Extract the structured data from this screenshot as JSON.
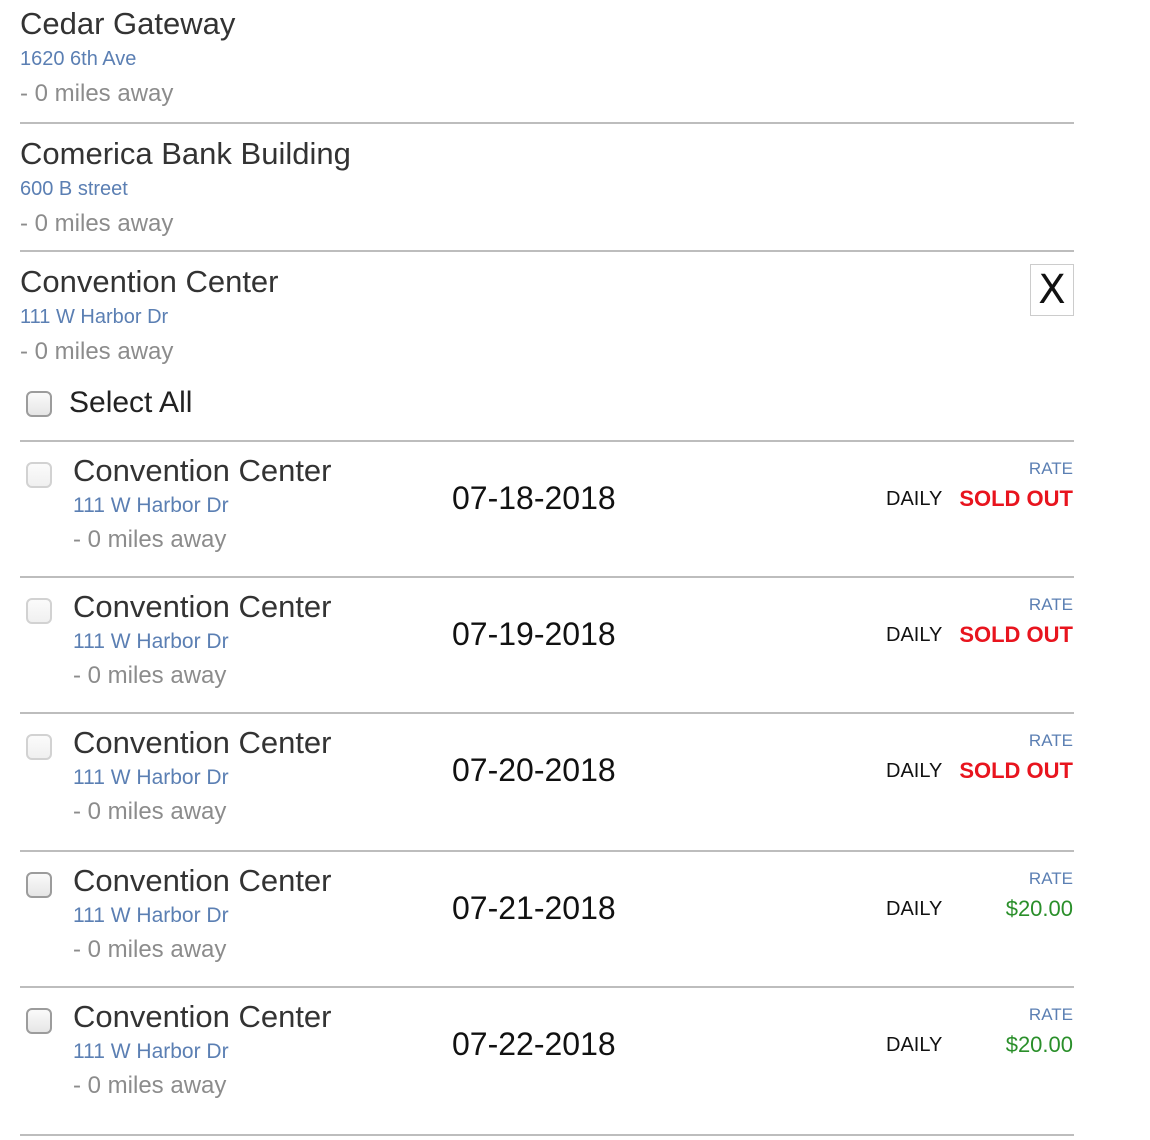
{
  "locations": [
    {
      "name": "Cedar Gateway",
      "address": "1620 6th Ave",
      "distance": "- 0 miles away"
    },
    {
      "name": "Comerica Bank Building",
      "address": "600 B street",
      "distance": "- 0 miles away"
    }
  ],
  "expanded": {
    "name": "Convention Center",
    "address": "111 W Harbor Dr",
    "distance": "- 0 miles away",
    "close_label": "X",
    "select_all_label": "Select All"
  },
  "rows": [
    {
      "name": "Convention Center",
      "address": "111 W Harbor Dr",
      "distance": "- 0 miles away",
      "date": "07-18-2018",
      "rate_label": "RATE",
      "type": "DAILY",
      "price": "SOLD OUT"
    },
    {
      "name": "Convention Center",
      "address": "111 W Harbor Dr",
      "distance": "- 0 miles away",
      "date": "07-19-2018",
      "rate_label": "RATE",
      "type": "DAILY",
      "price": "SOLD OUT"
    },
    {
      "name": "Convention Center",
      "address": "111 W Harbor Dr",
      "distance": "- 0 miles away",
      "date": "07-20-2018",
      "rate_label": "RATE",
      "type": "DAILY",
      "price": "SOLD OUT"
    },
    {
      "name": "Convention Center",
      "address": "111 W Harbor Dr",
      "distance": "- 0 miles away",
      "date": "07-21-2018",
      "rate_label": "RATE",
      "type": "DAILY",
      "price": "$20.00"
    },
    {
      "name": "Convention Center",
      "address": "111 W Harbor Dr",
      "distance": "- 0 miles away",
      "date": "07-22-2018",
      "rate_label": "RATE",
      "type": "DAILY",
      "price": "$20.00"
    }
  ],
  "colors": {
    "sold_out": "#e8141e",
    "available": "#2a8f2a",
    "address_link": "#5b7fb3"
  }
}
